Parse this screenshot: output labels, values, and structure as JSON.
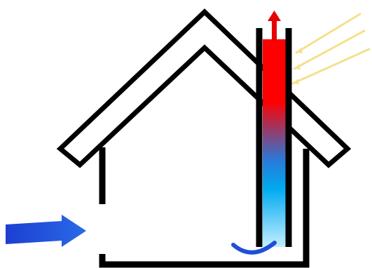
{
  "diagram": {
    "elements": {
      "roof": "roof-outline",
      "walls": "house-walls",
      "chimney": "solar-chimney",
      "inflow_arrow": "air-inflow-arrow",
      "outflow_arrow": "hot-air-outflow-arrow",
      "sun_rays": "sunlight-rays",
      "intake_curve": "air-intake-curve"
    },
    "colors": {
      "outline": "#000000",
      "hot": "#ff0000",
      "mid": "#2a78d8",
      "cool": "#00aaf0",
      "cold": "#c4eeff",
      "inflow": "#1f4fd6",
      "sun": "#f5e08c",
      "outflow_arrow": "#e60000"
    }
  }
}
